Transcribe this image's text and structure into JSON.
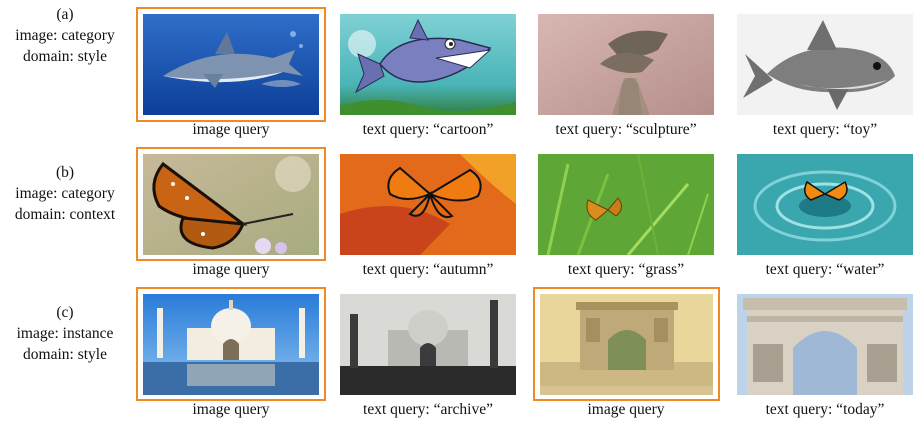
{
  "colors": {
    "highlight_border": "#f08a24"
  },
  "rows": [
    {
      "id": "a",
      "label_lines": [
        "(a)",
        "image: category",
        "domain: style"
      ],
      "cells": [
        {
          "caption": "image query",
          "highlighted": true,
          "subject": "shark",
          "style": "photo"
        },
        {
          "caption": "text query: “cartoon”",
          "highlighted": false,
          "subject": "shark",
          "style": "cartoon"
        },
        {
          "caption": "text query: “sculpture”",
          "highlighted": false,
          "subject": "shark",
          "style": "sculpture"
        },
        {
          "caption": "text query: “toy”",
          "highlighted": false,
          "subject": "shark",
          "style": "toy"
        }
      ]
    },
    {
      "id": "b",
      "label_lines": [
        "(b)",
        "image: category",
        "domain: context"
      ],
      "cells": [
        {
          "caption": "image query",
          "highlighted": true,
          "subject": "butterfly",
          "style": "flowers"
        },
        {
          "caption": "text query: “autumn”",
          "highlighted": false,
          "subject": "butterfly",
          "style": "autumn"
        },
        {
          "caption": "text query: “grass”",
          "highlighted": false,
          "subject": "butterfly",
          "style": "grass"
        },
        {
          "caption": "text query: “water”",
          "highlighted": false,
          "subject": "butterfly",
          "style": "water"
        }
      ]
    },
    {
      "id": "c",
      "label_lines": [
        "(c)",
        "image: instance",
        "domain: style"
      ],
      "cells": [
        {
          "caption": "image query",
          "highlighted": true,
          "subject": "taj-mahal",
          "style": "photo"
        },
        {
          "caption": "text query: “archive”",
          "highlighted": false,
          "subject": "taj-mahal",
          "style": "archive"
        },
        {
          "caption": "image query",
          "highlighted": true,
          "subject": "arc-de-triomphe",
          "style": "postcard"
        },
        {
          "caption": "text query: “today”",
          "highlighted": false,
          "subject": "arc-de-triomphe",
          "style": "today"
        }
      ]
    }
  ]
}
